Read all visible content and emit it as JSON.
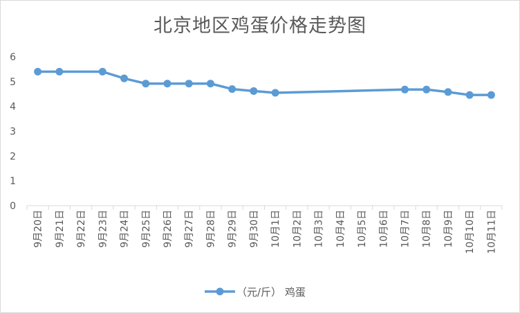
{
  "chart_data": {
    "type": "line",
    "title": "北京地区鸡蛋价格走势图",
    "xlabel": "",
    "ylabel": "",
    "ylim": [
      0,
      6
    ],
    "yticks": [
      0,
      1,
      2,
      3,
      4,
      5,
      6
    ],
    "grid": false,
    "legend_position": "bottom",
    "categories": [
      "9月20日",
      "9月21日",
      "9月22日",
      "9月23日",
      "9月24日",
      "9月25日",
      "9月26日",
      "9月27日",
      "9月28日",
      "9月29日",
      "9月30日",
      "10月1日",
      "10月2日",
      "10月3日",
      "10月4日",
      "10月5日",
      "10月6日",
      "10月7日",
      "10月8日",
      "10月9日",
      "10月10日",
      "10月11日"
    ],
    "series": [
      {
        "name": "（元/斤） 鸡蛋",
        "color": "#5b9bd5",
        "values": [
          5.4,
          5.4,
          null,
          5.4,
          5.13,
          4.92,
          4.92,
          4.92,
          4.92,
          4.7,
          4.62,
          4.55,
          null,
          null,
          null,
          null,
          null,
          4.68,
          4.68,
          4.58,
          4.46,
          4.46
        ]
      }
    ]
  }
}
